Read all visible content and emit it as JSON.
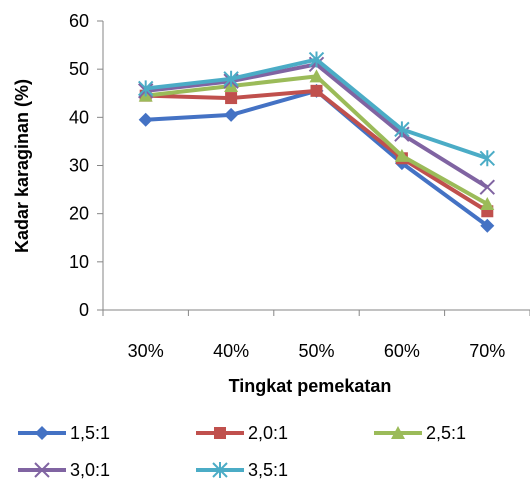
{
  "chart_data": {
    "type": "line",
    "xlabel": "Tingkat pemekatan",
    "ylabel": "Kadar karaginan (%)",
    "categories": [
      "30%",
      "40%",
      "50%",
      "60%",
      "70%"
    ],
    "ylim": [
      0,
      60
    ],
    "yticks": [
      0,
      10,
      20,
      30,
      40,
      50,
      60
    ],
    "grid": false,
    "legend_position": "bottom",
    "series": [
      {
        "name": "1,5:1",
        "color": "#4472C4",
        "marker": "diamond",
        "values": [
          39.5,
          40.5,
          45.5,
          30.5,
          17.5
        ]
      },
      {
        "name": "2,0:1",
        "color": "#C0504D",
        "marker": "square",
        "values": [
          44.5,
          44.0,
          45.5,
          31.5,
          20.5
        ]
      },
      {
        "name": "2,5:1",
        "color": "#9BBB59",
        "marker": "triangle",
        "values": [
          44.5,
          46.5,
          48.5,
          32.0,
          22.0
        ]
      },
      {
        "name": "3,0:1",
        "color": "#8064A2",
        "marker": "x",
        "values": [
          45.5,
          47.5,
          51.0,
          36.5,
          25.5
        ]
      },
      {
        "name": "3,5:1",
        "color": "#4BACC6",
        "marker": "star",
        "values": [
          46.0,
          48.0,
          52.0,
          37.5,
          31.5
        ]
      }
    ]
  }
}
